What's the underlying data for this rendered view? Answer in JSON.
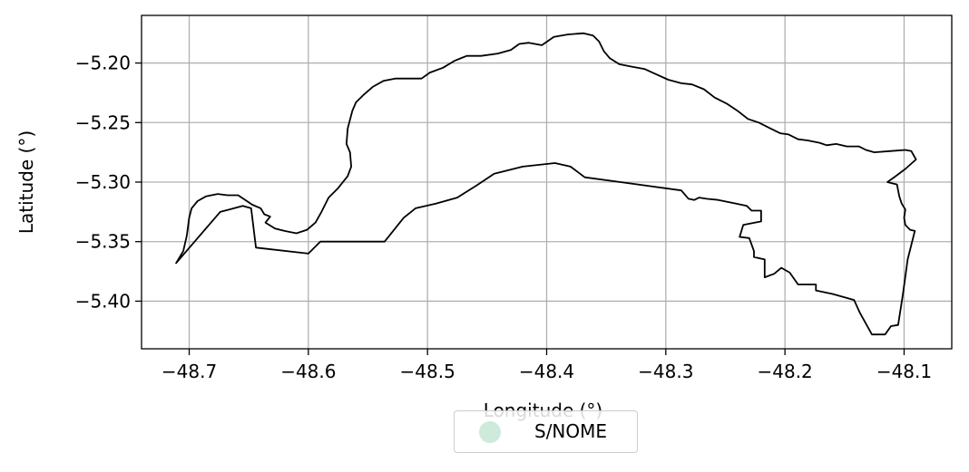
{
  "chart_data": {
    "type": "map",
    "xlabel": "Longitude (°)",
    "ylabel": "Latitude (°)",
    "xlim": [
      -48.74,
      -48.06
    ],
    "ylim": [
      -5.44,
      -5.16
    ],
    "x_ticks": [
      -48.7,
      -48.6,
      -48.5,
      -48.4,
      -48.3,
      -48.2,
      -48.1
    ],
    "y_ticks": [
      -5.2,
      -5.25,
      -5.3,
      -5.35,
      -5.4
    ],
    "x_tick_labels": [
      "−48.7",
      "−48.6",
      "−48.5",
      "−48.4",
      "−48.3",
      "−48.2",
      "−48.1"
    ],
    "y_tick_labels": [
      "−5.20",
      "−5.25",
      "−5.30",
      "−5.35",
      "−5.40"
    ],
    "grid": true,
    "legend": {
      "placement": "bottom-center",
      "entries": [
        {
          "label": "S/NOME",
          "color": "#cdeadb"
        }
      ]
    },
    "boundary": [
      [
        -48.711,
        -5.368
      ],
      [
        -48.705,
        -5.358
      ],
      [
        -48.702,
        -5.345
      ],
      [
        -48.7,
        -5.33
      ],
      [
        -48.698,
        -5.322
      ],
      [
        -48.693,
        -5.316
      ],
      [
        -48.686,
        -5.312
      ],
      [
        -48.676,
        -5.31
      ],
      [
        -48.668,
        -5.311
      ],
      [
        -48.659,
        -5.311
      ],
      [
        -48.653,
        -5.315
      ],
      [
        -48.647,
        -5.319
      ],
      [
        -48.64,
        -5.322
      ],
      [
        -48.637,
        -5.327
      ],
      [
        -48.632,
        -5.329
      ],
      [
        -48.636,
        -5.334
      ],
      [
        -48.628,
        -5.339
      ],
      [
        -48.62,
        -5.341
      ],
      [
        -48.61,
        -5.343
      ],
      [
        -48.601,
        -5.34
      ],
      [
        -48.594,
        -5.334
      ],
      [
        -48.589,
        -5.325
      ],
      [
        -48.583,
        -5.313
      ],
      [
        -48.575,
        -5.305
      ],
      [
        -48.567,
        -5.295
      ],
      [
        -48.564,
        -5.287
      ],
      [
        -48.565,
        -5.275
      ],
      [
        -48.568,
        -5.268
      ],
      [
        -48.567,
        -5.255
      ],
      [
        -48.563,
        -5.24
      ],
      [
        -48.56,
        -5.233
      ],
      [
        -48.554,
        -5.227
      ],
      [
        -48.546,
        -5.22
      ],
      [
        -48.537,
        -5.215
      ],
      [
        -48.527,
        -5.213
      ],
      [
        -48.517,
        -5.213
      ],
      [
        -48.505,
        -5.213
      ],
      [
        -48.498,
        -5.208
      ],
      [
        -48.487,
        -5.204
      ],
      [
        -48.477,
        -5.198
      ],
      [
        -48.467,
        -5.194
      ],
      [
        -48.455,
        -5.194
      ],
      [
        -48.441,
        -5.192
      ],
      [
        -48.43,
        -5.189
      ],
      [
        -48.423,
        -5.184
      ],
      [
        -48.415,
        -5.183
      ],
      [
        -48.404,
        -5.185
      ],
      [
        -48.394,
        -5.178
      ],
      [
        -48.382,
        -5.176
      ],
      [
        -48.369,
        -5.175
      ],
      [
        -48.361,
        -5.177
      ],
      [
        -48.356,
        -5.182
      ],
      [
        -48.352,
        -5.19
      ],
      [
        -48.347,
        -5.196
      ],
      [
        -48.339,
        -5.201
      ],
      [
        -48.329,
        -5.203
      ],
      [
        -48.318,
        -5.205
      ],
      [
        -48.309,
        -5.209
      ],
      [
        -48.298,
        -5.214
      ],
      [
        -48.287,
        -5.217
      ],
      [
        -48.278,
        -5.218
      ],
      [
        -48.268,
        -5.222
      ],
      [
        -48.259,
        -5.229
      ],
      [
        -48.249,
        -5.234
      ],
      [
        -48.24,
        -5.24
      ],
      [
        -48.231,
        -5.247
      ],
      [
        -48.222,
        -5.25
      ],
      [
        -48.212,
        -5.255
      ],
      [
        -48.204,
        -5.259
      ],
      [
        -48.197,
        -5.26
      ],
      [
        -48.189,
        -5.264
      ],
      [
        -48.181,
        -5.265
      ],
      [
        -48.171,
        -5.267
      ],
      [
        -48.165,
        -5.269
      ],
      [
        -48.157,
        -5.268
      ],
      [
        -48.148,
        -5.27
      ],
      [
        -48.138,
        -5.27
      ],
      [
        -48.132,
        -5.273
      ],
      [
        -48.125,
        -5.275
      ],
      [
        -48.112,
        -5.274
      ],
      [
        -48.099,
        -5.273
      ],
      [
        -48.094,
        -5.274
      ],
      [
        -48.09,
        -5.281
      ],
      [
        -48.099,
        -5.289
      ],
      [
        -48.107,
        -5.295
      ],
      [
        -48.114,
        -5.3
      ],
      [
        -48.106,
        -5.302
      ],
      [
        -48.104,
        -5.312
      ],
      [
        -48.102,
        -5.318
      ],
      [
        -48.099,
        -5.323
      ],
      [
        -48.1,
        -5.33
      ],
      [
        -48.099,
        -5.336
      ],
      [
        -48.095,
        -5.34
      ],
      [
        -48.091,
        -5.341
      ],
      [
        -48.097,
        -5.365
      ],
      [
        -48.101,
        -5.394
      ],
      [
        -48.105,
        -5.42
      ],
      [
        -48.111,
        -5.421
      ],
      [
        -48.116,
        -5.428
      ],
      [
        -48.121,
        -5.428
      ],
      [
        -48.127,
        -5.428
      ],
      [
        -48.137,
        -5.41
      ],
      [
        -48.142,
        -5.399
      ],
      [
        -48.16,
        -5.394
      ],
      [
        -48.174,
        -5.391
      ],
      [
        -48.174,
        -5.386
      ],
      [
        -48.181,
        -5.386
      ],
      [
        -48.189,
        -5.386
      ],
      [
        -48.196,
        -5.376
      ],
      [
        -48.203,
        -5.372
      ],
      [
        -48.209,
        -5.377
      ],
      [
        -48.217,
        -5.38
      ],
      [
        -48.217,
        -5.365
      ],
      [
        -48.226,
        -5.363
      ],
      [
        -48.226,
        -5.358
      ],
      [
        -48.23,
        -5.347
      ],
      [
        -48.238,
        -5.346
      ],
      [
        -48.235,
        -5.336
      ],
      [
        -48.22,
        -5.333
      ],
      [
        -48.22,
        -5.324
      ],
      [
        -48.228,
        -5.324
      ],
      [
        -48.232,
        -5.32
      ],
      [
        -48.241,
        -5.318
      ],
      [
        -48.256,
        -5.315
      ],
      [
        -48.266,
        -5.314
      ],
      [
        -48.272,
        -5.313
      ],
      [
        -48.276,
        -5.315
      ],
      [
        -48.281,
        -5.314
      ],
      [
        -48.287,
        -5.307
      ],
      [
        -48.338,
        -5.3
      ],
      [
        -48.368,
        -5.296
      ],
      [
        -48.38,
        -5.287
      ],
      [
        -48.393,
        -5.284
      ],
      [
        -48.42,
        -5.287
      ],
      [
        -48.444,
        -5.293
      ],
      [
        -48.459,
        -5.303
      ],
      [
        -48.475,
        -5.313
      ],
      [
        -48.493,
        -5.318
      ],
      [
        -48.51,
        -5.322
      ],
      [
        -48.52,
        -5.33
      ],
      [
        -48.536,
        -5.35
      ],
      [
        -48.59,
        -5.35
      ],
      [
        -48.6,
        -5.36
      ],
      [
        -48.644,
        -5.355
      ],
      [
        -48.648,
        -5.322
      ],
      [
        -48.655,
        -5.32
      ],
      [
        -48.674,
        -5.325
      ],
      [
        -48.711,
        -5.368
      ]
    ]
  }
}
